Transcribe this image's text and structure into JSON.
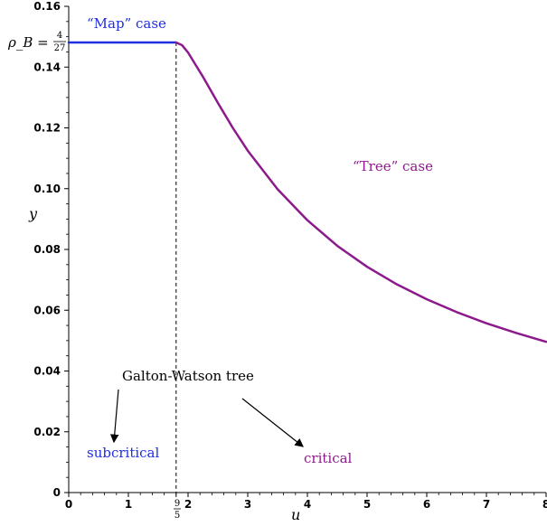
{
  "chart_data": {
    "type": "line",
    "xlabel": "u",
    "ylabel": "y",
    "xlim": [
      0,
      8
    ],
    "ylim": [
      0,
      0.16
    ],
    "x_ticks": [
      0,
      1,
      2,
      3,
      4,
      5,
      6,
      7,
      8
    ],
    "x_tick_labels": [
      "0",
      "1",
      "2",
      "3",
      "4",
      "5",
      "6",
      "7",
      "8"
    ],
    "y_ticks": [
      0,
      0.02,
      0.04,
      0.06,
      0.08,
      0.1,
      0.12,
      0.14,
      0.16
    ],
    "y_tick_labels": [
      "0",
      "0.02",
      "0.04",
      "0.06",
      "0.08",
      "0.10",
      "0.12",
      "0.14",
      "0.16"
    ],
    "special_x": {
      "value": 1.8,
      "label_num": "9",
      "label_den": "5"
    },
    "special_y": {
      "value": 0.148148,
      "label_lhs": "ρ_B =",
      "label_num": "4",
      "label_den": "27"
    },
    "series": [
      {
        "name": "“Map” case",
        "color": "#1f2ee0",
        "x": [
          0,
          1.8
        ],
        "y": [
          0.1481,
          0.1481
        ]
      },
      {
        "name": "“Tree” case",
        "color": "#8c1a8c",
        "x": [
          1.8,
          1.9,
          2.0,
          2.25,
          2.5,
          2.75,
          3.0,
          3.5,
          4.0,
          4.5,
          5.0,
          5.5,
          6.0,
          6.5,
          7.0,
          7.5,
          8.0
        ],
        "y": [
          0.1481,
          0.1472,
          0.1448,
          0.1368,
          0.1282,
          0.12,
          0.1125,
          0.0998,
          0.0896,
          0.0812,
          0.0743,
          0.0685,
          0.0636,
          0.0594,
          0.0557,
          0.0525,
          0.0496
        ]
      }
    ],
    "annotations": {
      "map_case": "“Map” case",
      "tree_case": "“Tree” case",
      "galton_watson": "Galton-Watson tree",
      "subcritical": "subcritical",
      "critical": "critical"
    },
    "colors": {
      "blue": "#1f2ee0",
      "purple": "#8c1a8c"
    }
  }
}
